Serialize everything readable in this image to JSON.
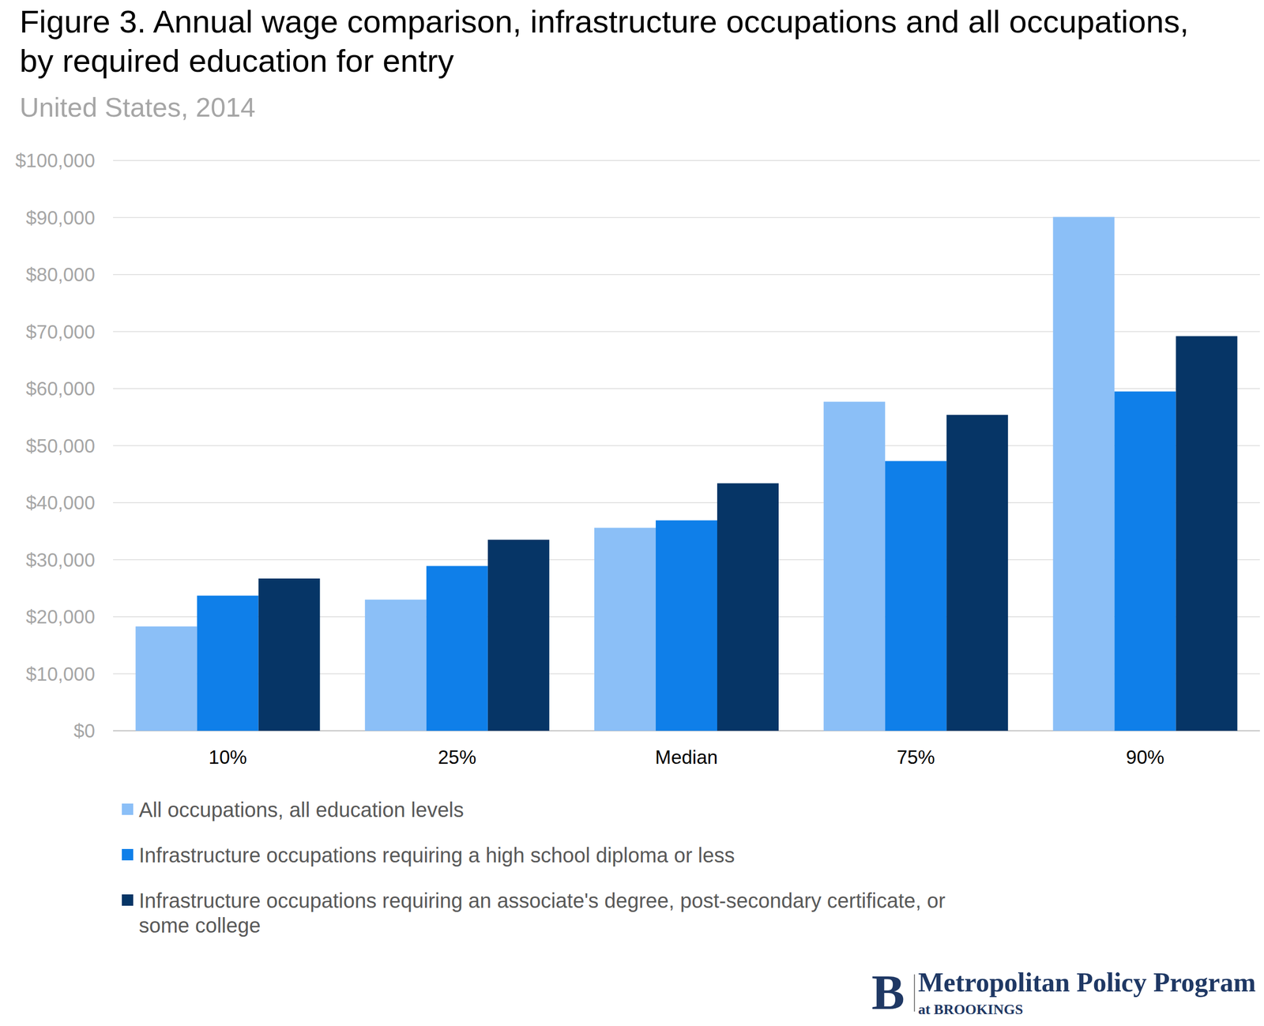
{
  "chart_data": {
    "type": "bar",
    "title": "Figure 3. Annual wage comparison, infrastructure occupations and all occupations, by required education for entry",
    "subtitle": "United States, 2014",
    "categories": [
      "10%",
      "25%",
      "Median",
      "75%",
      "90%"
    ],
    "series": [
      {
        "name": "All occupations, all education levels",
        "color": "#8bbff7",
        "values": [
          18300,
          23000,
          35600,
          57700,
          90100
        ]
      },
      {
        "name": "Infrastructure occupations requiring a high school diploma or less",
        "color": "#0f7fe9",
        "values": [
          23700,
          28900,
          36900,
          47300,
          59500
        ]
      },
      {
        "name": "Infrastructure occupations requiring an associate's degree, post-secondary certificate, or some college",
        "color": "#063566",
        "values": [
          26700,
          33500,
          43400,
          55400,
          69200
        ]
      }
    ],
    "ylim": [
      0,
      100000
    ],
    "yticks": [
      {
        "value": 0,
        "label": "$0"
      },
      {
        "value": 10000,
        "label": "$10,000"
      },
      {
        "value": 20000,
        "label": "$20,000"
      },
      {
        "value": 30000,
        "label": "$30,000"
      },
      {
        "value": 40000,
        "label": "$40,000"
      },
      {
        "value": 50000,
        "label": "$50,000"
      },
      {
        "value": 60000,
        "label": "$60,000"
      },
      {
        "value": 70000,
        "label": "$70,000"
      },
      {
        "value": 80000,
        "label": "$80,000"
      },
      {
        "value": 90000,
        "label": "$90,000"
      },
      {
        "value": 100000,
        "label": "$100,000"
      }
    ],
    "grid": true,
    "legend": "bottom"
  },
  "branding": {
    "logo": "B",
    "name": "Metropolitan Policy Program",
    "sub": "at BROOKINGS"
  }
}
